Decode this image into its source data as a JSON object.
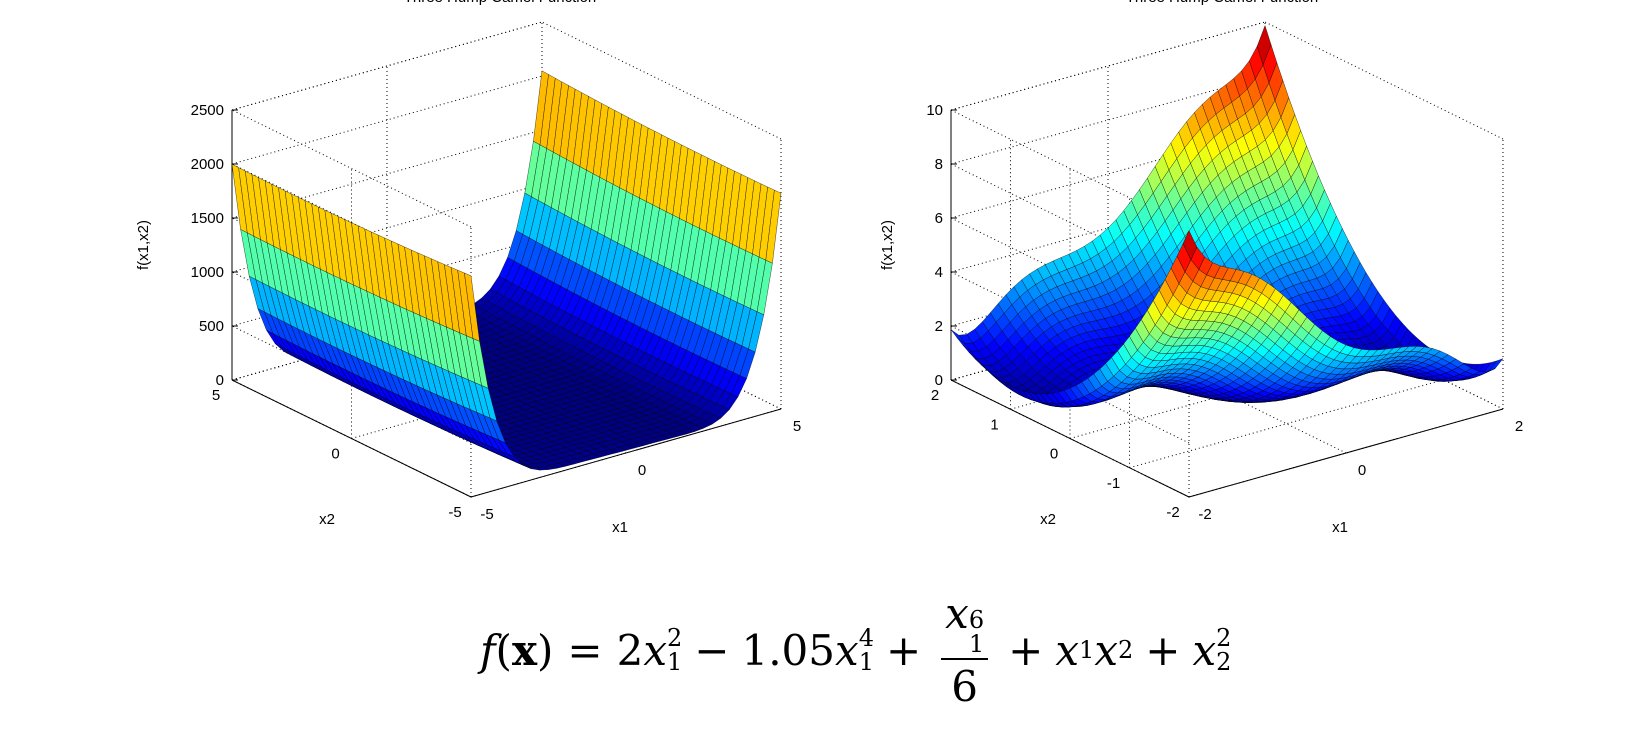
{
  "chart_data": [
    {
      "type": "surface",
      "title": "Three Hump Camel Function",
      "xlabel": "x1",
      "ylabel": "x2",
      "zlabel": "f(x1,x2)",
      "xlim": [
        -5,
        5
      ],
      "ylim": [
        -5,
        5
      ],
      "zlim": [
        0,
        2500
      ],
      "xticks": [
        "-5",
        "0",
        "5"
      ],
      "yticks": [
        "-5",
        "0",
        "5"
      ],
      "zticks": [
        "0",
        "500",
        "1000",
        "1500",
        "2000",
        "2500"
      ],
      "colormap": "jet",
      "grid": true
    },
    {
      "type": "surface",
      "title": "Three Hump Camel Function",
      "xlabel": "x1",
      "ylabel": "x2",
      "zlabel": "f(x1,x2)",
      "xlim": [
        -2,
        2
      ],
      "ylim": [
        -2,
        2
      ],
      "zlim": [
        0,
        10
      ],
      "xticks": [
        "-2",
        "0",
        "2"
      ],
      "yticks": [
        "-2",
        "-1",
        "0",
        "1",
        "2"
      ],
      "zticks": [
        "0",
        "2",
        "4",
        "6",
        "8",
        "10"
      ],
      "colormap": "jet",
      "grid": true
    }
  ],
  "formula": {
    "lhs_f": "f",
    "lhs_open": "(",
    "lhs_x": "x",
    "lhs_close": ")",
    "equals": "=",
    "coef1": "2",
    "var": "x",
    "sub1": "1",
    "pow2": "2",
    "minus": "−",
    "coef2": "1.05",
    "pow4": "4",
    "plus": "+",
    "pow6": "6",
    "den": "6",
    "sub2": "2"
  }
}
